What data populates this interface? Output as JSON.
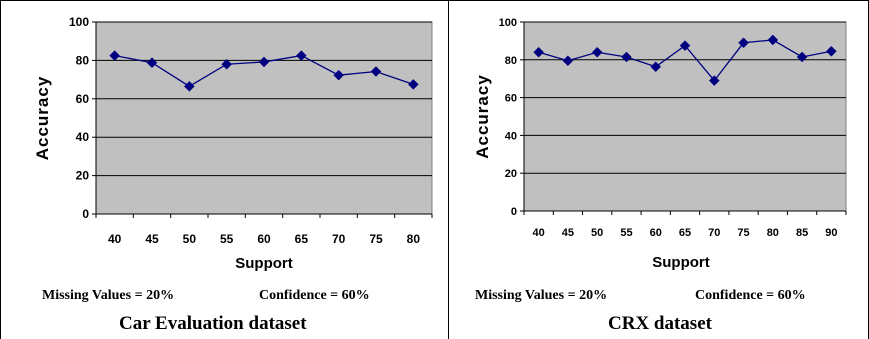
{
  "chart_data": [
    {
      "type": "line",
      "title": "Car Evaluation dataset",
      "xlabel": "Support",
      "ylabel": "Accuracy",
      "categories": [
        "40",
        "45",
        "50",
        "55",
        "60",
        "65",
        "70",
        "75",
        "80"
      ],
      "values": [
        82.5,
        78.8,
        66.5,
        78.0,
        79.2,
        82.5,
        72.3,
        74.2,
        67.5
      ],
      "ylim": [
        0,
        100
      ],
      "yticks": [
        "0",
        "20",
        "40",
        "60",
        "80",
        "100"
      ],
      "grid": true,
      "plot_background": "#c0c0c0",
      "line_color": "#000080",
      "marker": "diamond",
      "caption_left": "Missing Values = 20%",
      "caption_right": "Confidence = 60%"
    },
    {
      "type": "line",
      "title": "CRX dataset",
      "xlabel": "Support",
      "ylabel": "Accuracy",
      "categories": [
        "40",
        "45",
        "50",
        "55",
        "60",
        "65",
        "70",
        "75",
        "80",
        "85",
        "90"
      ],
      "values": [
        84.0,
        79.5,
        84.0,
        81.5,
        76.3,
        87.5,
        69.0,
        89.0,
        90.5,
        81.5,
        84.5
      ],
      "ylim": [
        0,
        100
      ],
      "yticks": [
        "0",
        "20",
        "40",
        "60",
        "80",
        "100"
      ],
      "grid": true,
      "plot_background": "#c0c0c0",
      "line_color": "#000080",
      "marker": "diamond",
      "caption_left": "Missing Values = 20%",
      "caption_right": "Confidence = 60%"
    }
  ]
}
